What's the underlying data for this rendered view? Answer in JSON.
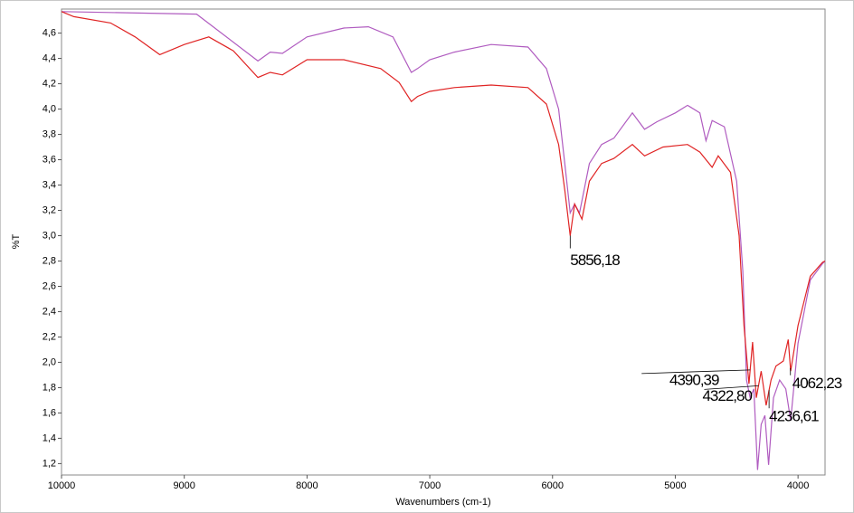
{
  "chart_data": {
    "type": "line",
    "xlabel": "Wavenumbers (cm-1)",
    "ylabel": "%T",
    "xlim": [
      10000,
      3780
    ],
    "ylim": [
      1.11,
      4.79
    ],
    "xticks": [
      10000,
      9000,
      8000,
      7000,
      6000,
      5000,
      4000
    ],
    "yticks": [
      {
        "value": 1.2,
        "label": "1,2"
      },
      {
        "value": 1.4,
        "label": "1,4"
      },
      {
        "value": 1.6,
        "label": "1,6"
      },
      {
        "value": 1.8,
        "label": "1,8"
      },
      {
        "value": 2.0,
        "label": "2,0"
      },
      {
        "value": 2.2,
        "label": "2,2"
      },
      {
        "value": 2.4,
        "label": "2,4"
      },
      {
        "value": 2.6,
        "label": "2,6"
      },
      {
        "value": 2.8,
        "label": "2,8"
      },
      {
        "value": 3.0,
        "label": "3,0"
      },
      {
        "value": 3.2,
        "label": "3,2"
      },
      {
        "value": 3.4,
        "label": "3,4"
      },
      {
        "value": 3.6,
        "label": "3,6"
      },
      {
        "value": 3.8,
        "label": "3,8"
      },
      {
        "value": 4.0,
        "label": "4,0"
      },
      {
        "value": 4.2,
        "label": "4,2"
      },
      {
        "value": 4.4,
        "label": "4,4"
      },
      {
        "value": 4.6,
        "label": "4,6"
      }
    ],
    "series": [
      {
        "color": "#b05cc0",
        "x": [
          10000,
          8900,
          8400,
          8300,
          8200,
          8000,
          7700,
          7500,
          7300,
          7150,
          7100,
          7000,
          6800,
          6500,
          6200,
          6050,
          5950,
          5900,
          5856,
          5820,
          5780,
          5700,
          5600,
          5500,
          5350,
          5250,
          5150,
          5000,
          4900,
          4800,
          4750,
          4700,
          4600,
          4500,
          4450,
          4420,
          4390,
          4360,
          4330,
          4300,
          4270,
          4240,
          4200,
          4150,
          4100,
          4060,
          4000,
          3900,
          3800,
          3780
        ],
        "values": [
          4.77,
          4.75,
          4.38,
          4.45,
          4.44,
          4.57,
          4.64,
          4.65,
          4.57,
          4.29,
          4.32,
          4.39,
          4.45,
          4.51,
          4.49,
          4.32,
          4.0,
          3.57,
          3.18,
          3.25,
          3.18,
          3.57,
          3.72,
          3.77,
          3.97,
          3.84,
          3.9,
          3.97,
          4.03,
          3.97,
          3.75,
          3.91,
          3.86,
          3.43,
          2.72,
          1.86,
          1.72,
          1.79,
          1.15,
          1.51,
          1.58,
          1.19,
          1.72,
          1.86,
          1.79,
          1.54,
          2.15,
          2.65,
          2.78,
          2.8
        ]
      },
      {
        "color": "#e02424",
        "x": [
          10000,
          9900,
          9600,
          9400,
          9200,
          9000,
          8800,
          8600,
          8400,
          8300,
          8200,
          8000,
          7700,
          7400,
          7250,
          7150,
          7100,
          7000,
          6800,
          6500,
          6200,
          6050,
          5950,
          5900,
          5856,
          5820,
          5760,
          5700,
          5600,
          5500,
          5350,
          5250,
          5100,
          4900,
          4800,
          4700,
          4650,
          4550,
          4480,
          4440,
          4400,
          4370,
          4340,
          4300,
          4260,
          4220,
          4180,
          4120,
          4080,
          4060,
          4000,
          3900,
          3800,
          3780
        ],
        "values": [
          4.77,
          4.73,
          4.68,
          4.57,
          4.43,
          4.51,
          4.57,
          4.46,
          4.25,
          4.29,
          4.27,
          4.39,
          4.39,
          4.32,
          4.21,
          4.06,
          4.1,
          4.14,
          4.17,
          4.19,
          4.17,
          4.04,
          3.72,
          3.36,
          3.0,
          3.25,
          3.13,
          3.43,
          3.57,
          3.61,
          3.72,
          3.63,
          3.7,
          3.72,
          3.66,
          3.54,
          3.63,
          3.5,
          3.0,
          2.29,
          1.83,
          2.16,
          1.72,
          1.93,
          1.66,
          1.86,
          1.97,
          2.01,
          2.18,
          1.93,
          2.29,
          2.68,
          2.79,
          2.8
        ]
      }
    ],
    "annotations": [
      {
        "text": "5856,18",
        "x": 5856
      },
      {
        "text": "4390,39",
        "x": 4390
      },
      {
        "text": "4322,80",
        "x": 4322
      },
      {
        "text": "4236,61",
        "x": 4236
      },
      {
        "text": "4062,23",
        "x": 4062
      }
    ]
  }
}
